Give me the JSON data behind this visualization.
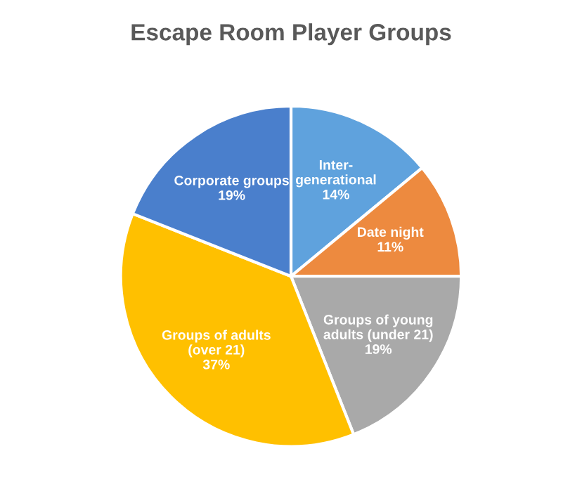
{
  "chart_data": {
    "type": "pie",
    "title": "Escape Room Player Groups",
    "categories": [
      "Inter-\ngenerational",
      "Date night",
      "Groups of young\nadults (under 21)",
      "Groups of adults\n(over 21)",
      "Corporate groups"
    ],
    "values": [
      14,
      11,
      19,
      37,
      19
    ],
    "colors": [
      "#5fa2dd",
      "#ed8a3f",
      "#a9a9a9",
      "#ffc000",
      "#4a7fcc"
    ],
    "value_labels": [
      "14%",
      "11%",
      "19%",
      "37%",
      "19%"
    ],
    "legend": false
  }
}
